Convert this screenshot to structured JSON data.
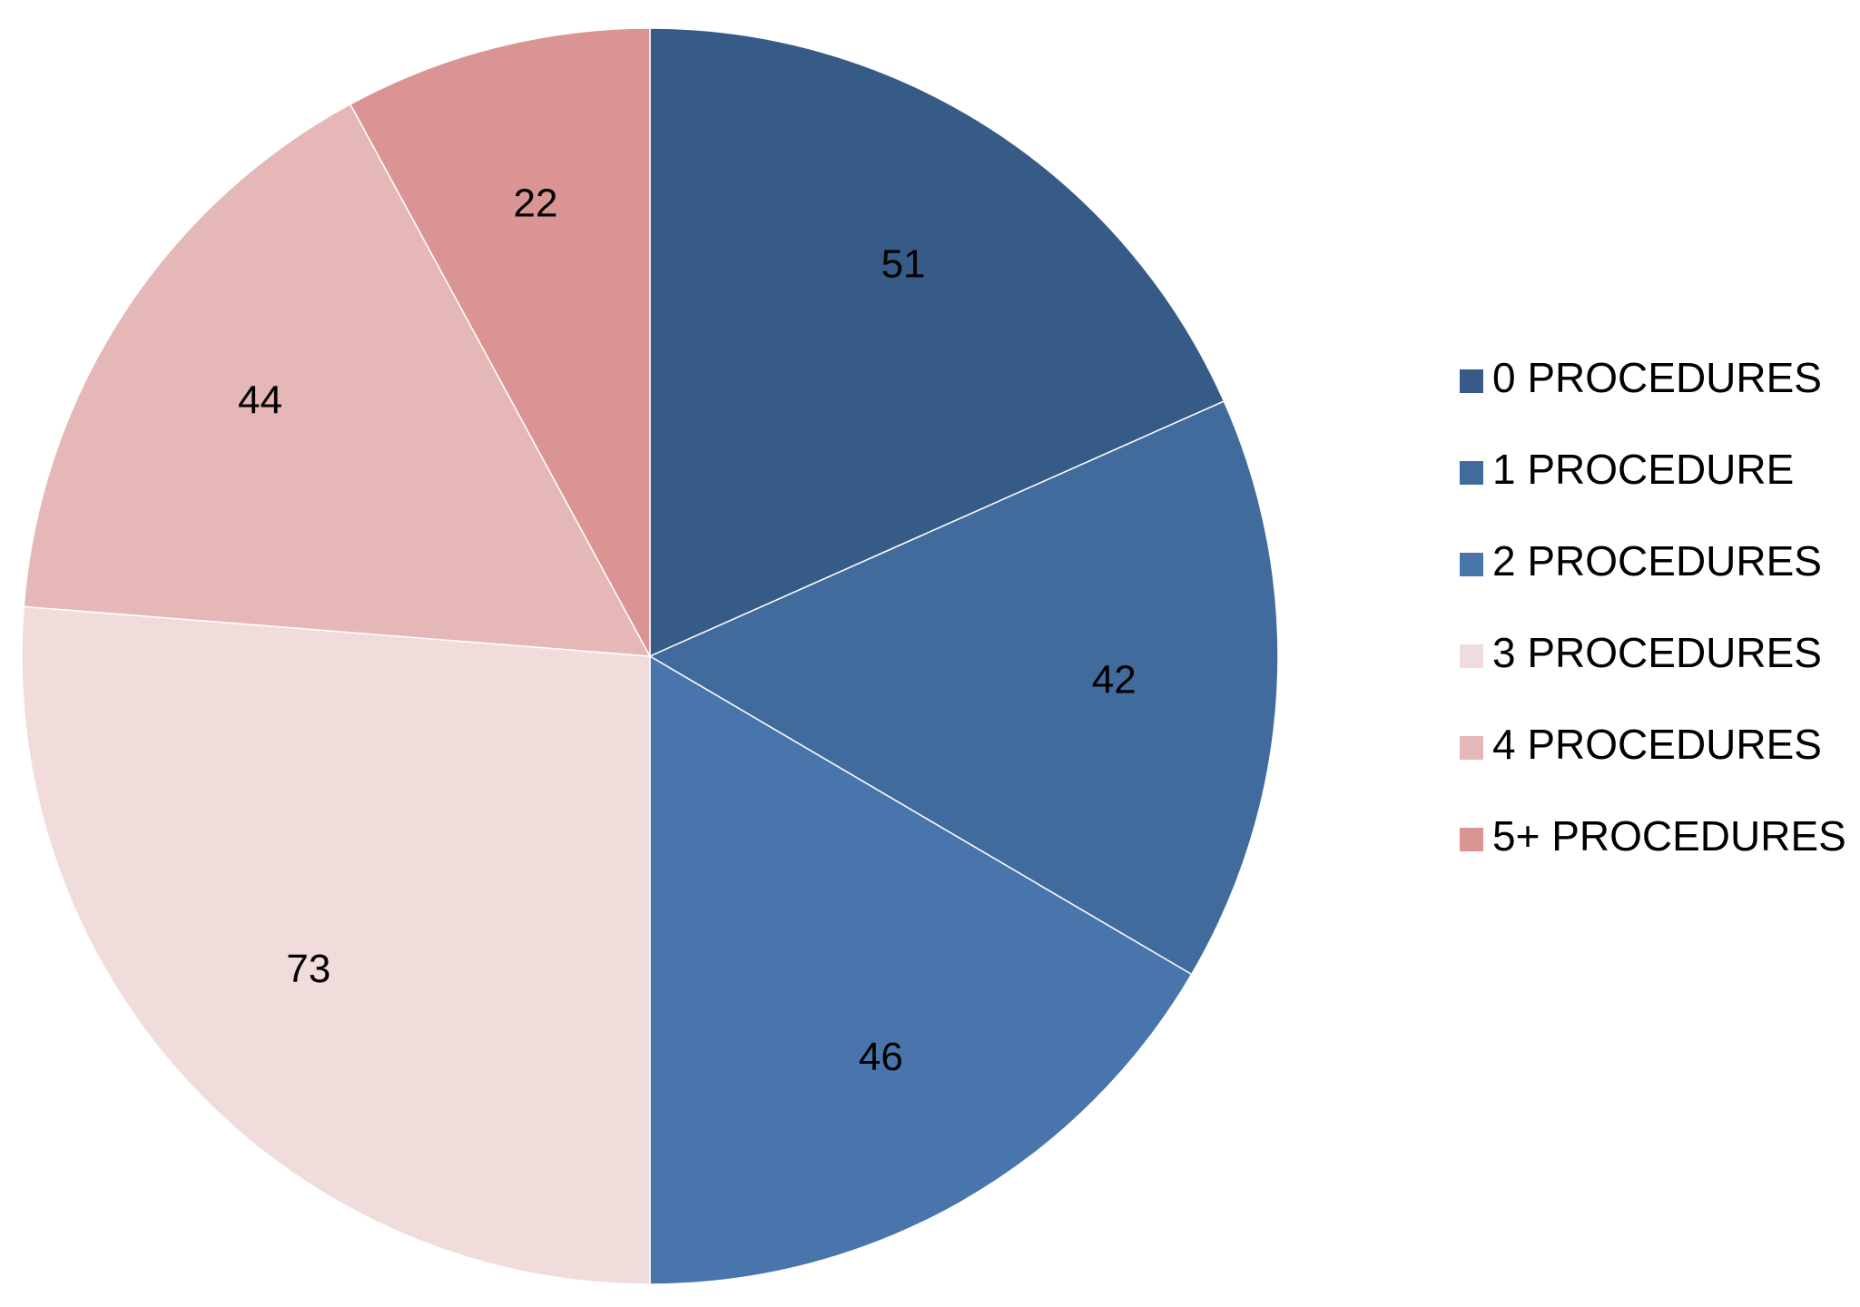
{
  "chart_data": {
    "type": "pie",
    "title": "",
    "categories": [
      "0 PROCEDURES",
      "1 PROCEDURE",
      "2 PROCEDURES",
      "3 PROCEDURES",
      "4 PROCEDURES",
      "5+ PROCEDURES"
    ],
    "values": [
      51,
      42,
      46,
      73,
      44,
      22
    ],
    "colors": [
      "#375b87",
      "#416b9d",
      "#4975ad",
      "#f1dcdc",
      "#e6b7b7",
      "#d99493"
    ],
    "start_angle": "12 o'clock",
    "direction": "clockwise",
    "data_labels": true,
    "legend": "right"
  }
}
